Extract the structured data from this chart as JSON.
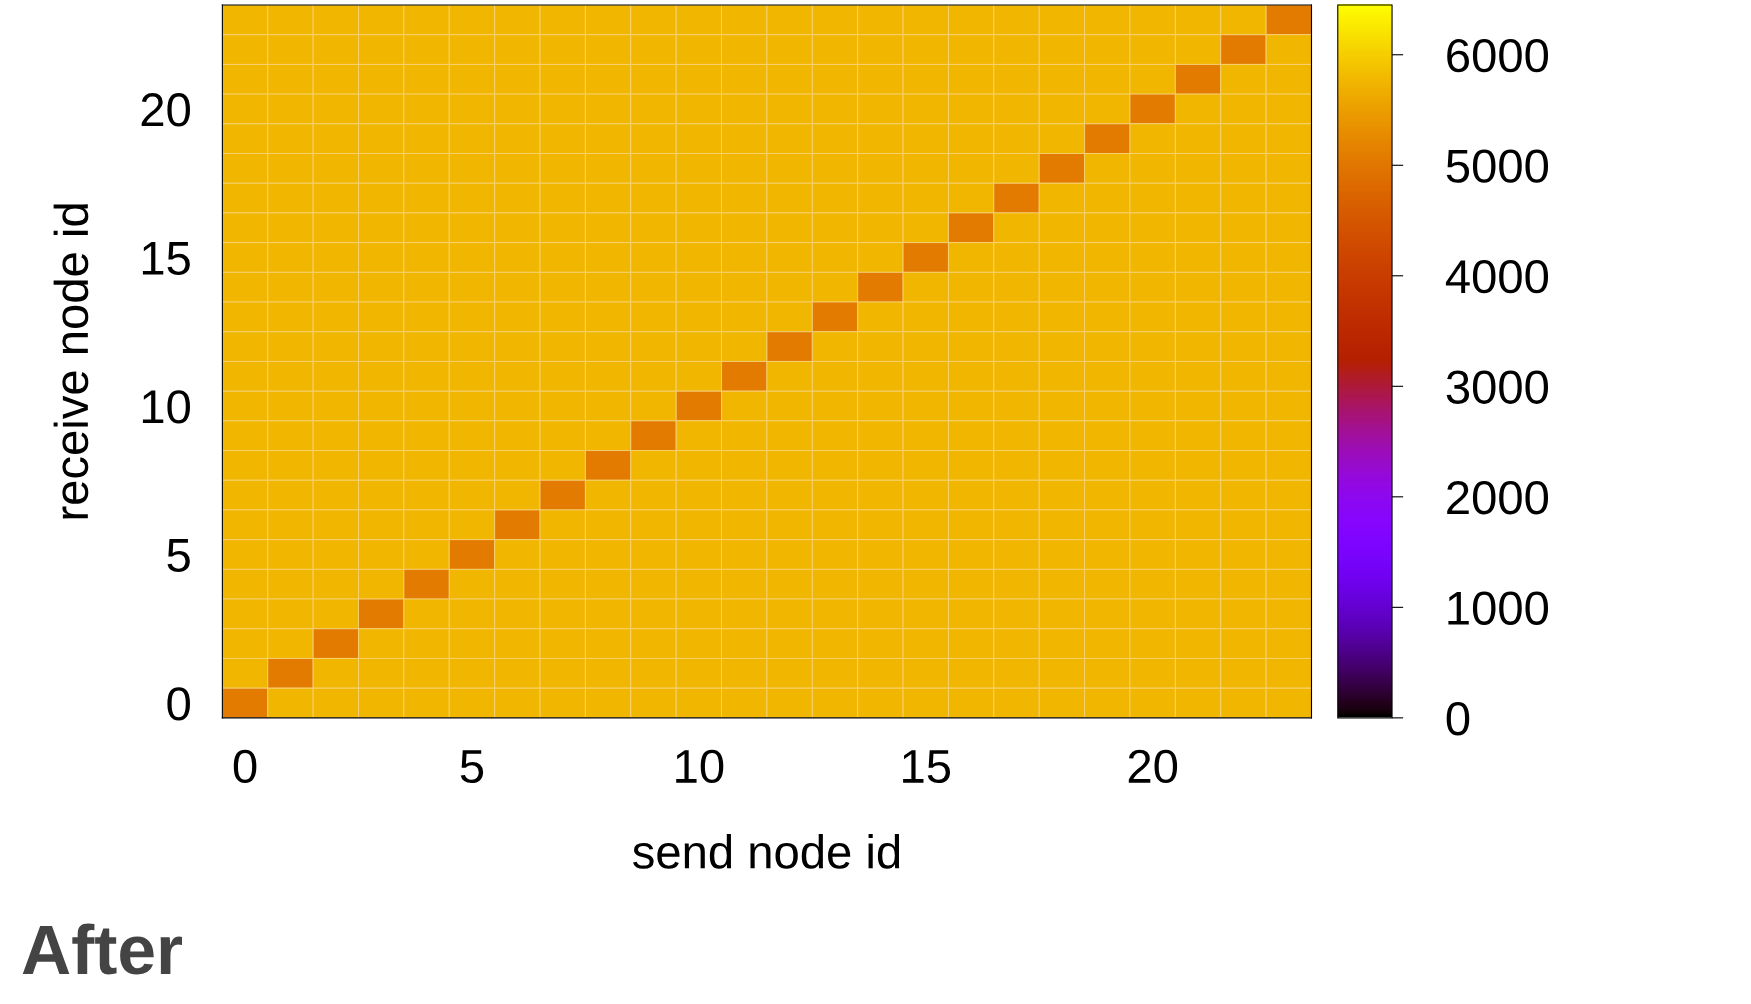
{
  "chart_data": {
    "type": "heatmap",
    "xlabel": "send node id",
    "ylabel": "receive node id",
    "categories": [
      "0",
      null,
      null,
      null,
      null,
      "5",
      null,
      null,
      null,
      null,
      "10",
      null,
      null,
      null,
      null,
      "15",
      null,
      null,
      null,
      null,
      "20",
      null,
      null,
      null
    ],
    "y_categories": [
      null,
      null,
      null,
      "20",
      null,
      null,
      null,
      null,
      "15",
      null,
      null,
      null,
      null,
      "10",
      null,
      null,
      null,
      null,
      "5",
      null,
      null,
      null,
      null,
      "0"
    ],
    "cells": [
      [
        5750,
        5750,
        5750,
        5750,
        5750,
        5750,
        5750,
        5750,
        5750,
        5750,
        5750,
        5750,
        5750,
        5750,
        5750,
        5750,
        5750,
        5750,
        5750,
        5750,
        5750,
        5750,
        5750,
        5050
      ],
      [
        5750,
        5750,
        5750,
        5750,
        5750,
        5750,
        5750,
        5750,
        5750,
        5750,
        5750,
        5750,
        5750,
        5750,
        5750,
        5750,
        5750,
        5750,
        5750,
        5750,
        5750,
        5750,
        5050,
        5750
      ],
      [
        5750,
        5750,
        5750,
        5750,
        5750,
        5750,
        5750,
        5750,
        5750,
        5750,
        5750,
        5750,
        5750,
        5750,
        5750,
        5750,
        5750,
        5750,
        5750,
        5750,
        5750,
        5050,
        5750,
        5750
      ],
      [
        5750,
        5750,
        5750,
        5750,
        5750,
        5750,
        5750,
        5750,
        5750,
        5750,
        5750,
        5750,
        5750,
        5750,
        5750,
        5750,
        5750,
        5750,
        5750,
        5750,
        5050,
        5750,
        5750,
        5750
      ],
      [
        5750,
        5750,
        5750,
        5750,
        5750,
        5750,
        5750,
        5750,
        5750,
        5750,
        5750,
        5750,
        5750,
        5750,
        5750,
        5750,
        5750,
        5750,
        5750,
        5050,
        5750,
        5750,
        5750,
        5750
      ],
      [
        5750,
        5750,
        5750,
        5750,
        5750,
        5750,
        5750,
        5750,
        5750,
        5750,
        5750,
        5750,
        5750,
        5750,
        5750,
        5750,
        5750,
        5750,
        5050,
        5750,
        5750,
        5750,
        5750,
        5750
      ],
      [
        5750,
        5750,
        5750,
        5750,
        5750,
        5750,
        5750,
        5750,
        5750,
        5750,
        5750,
        5750,
        5750,
        5750,
        5750,
        5750,
        5750,
        5050,
        5750,
        5750,
        5750,
        5750,
        5750,
        5750
      ],
      [
        5750,
        5750,
        5750,
        5750,
        5750,
        5750,
        5750,
        5750,
        5750,
        5750,
        5750,
        5750,
        5750,
        5750,
        5750,
        5750,
        5050,
        5750,
        5750,
        5750,
        5750,
        5750,
        5750,
        5750
      ],
      [
        5750,
        5750,
        5750,
        5750,
        5750,
        5750,
        5750,
        5750,
        5750,
        5750,
        5750,
        5750,
        5750,
        5750,
        5750,
        5050,
        5750,
        5750,
        5750,
        5750,
        5750,
        5750,
        5750,
        5750
      ],
      [
        5750,
        5750,
        5750,
        5750,
        5750,
        5750,
        5750,
        5750,
        5750,
        5750,
        5750,
        5750,
        5750,
        5750,
        5050,
        5750,
        5750,
        5750,
        5750,
        5750,
        5750,
        5750,
        5750,
        5750
      ],
      [
        5750,
        5750,
        5750,
        5750,
        5750,
        5750,
        5750,
        5750,
        5750,
        5750,
        5750,
        5750,
        5750,
        5050,
        5750,
        5750,
        5750,
        5750,
        5750,
        5750,
        5750,
        5750,
        5750,
        5750
      ],
      [
        5750,
        5750,
        5750,
        5750,
        5750,
        5750,
        5750,
        5750,
        5750,
        5750,
        5750,
        5750,
        5050,
        5750,
        5750,
        5750,
        5750,
        5750,
        5750,
        5750,
        5750,
        5750,
        5750,
        5750
      ],
      [
        5750,
        5750,
        5750,
        5750,
        5750,
        5750,
        5750,
        5750,
        5750,
        5750,
        5750,
        5050,
        5750,
        5750,
        5750,
        5750,
        5750,
        5750,
        5750,
        5750,
        5750,
        5750,
        5750,
        5750
      ],
      [
        5750,
        5750,
        5750,
        5750,
        5750,
        5750,
        5750,
        5750,
        5750,
        5750,
        5050,
        5750,
        5750,
        5750,
        5750,
        5750,
        5750,
        5750,
        5750,
        5750,
        5750,
        5750,
        5750,
        5750
      ],
      [
        5750,
        5750,
        5750,
        5750,
        5750,
        5750,
        5750,
        5750,
        5750,
        5050,
        5750,
        5750,
        5750,
        5750,
        5750,
        5750,
        5750,
        5750,
        5750,
        5750,
        5750,
        5750,
        5750,
        5750
      ],
      [
        5750,
        5750,
        5750,
        5750,
        5750,
        5750,
        5750,
        5750,
        5050,
        5750,
        5750,
        5750,
        5750,
        5750,
        5750,
        5750,
        5750,
        5750,
        5750,
        5750,
        5750,
        5750,
        5750,
        5750
      ],
      [
        5750,
        5750,
        5750,
        5750,
        5750,
        5750,
        5750,
        5050,
        5750,
        5750,
        5750,
        5750,
        5750,
        5750,
        5750,
        5750,
        5750,
        5750,
        5750,
        5750,
        5750,
        5750,
        5750,
        5750
      ],
      [
        5750,
        5750,
        5750,
        5750,
        5750,
        5750,
        5050,
        5750,
        5750,
        5750,
        5750,
        5750,
        5750,
        5750,
        5750,
        5750,
        5750,
        5750,
        5750,
        5750,
        5750,
        5750,
        5750,
        5750
      ],
      [
        5750,
        5750,
        5750,
        5750,
        5750,
        5050,
        5750,
        5750,
        5750,
        5750,
        5750,
        5750,
        5750,
        5750,
        5750,
        5750,
        5750,
        5750,
        5750,
        5750,
        5750,
        5750,
        5750,
        5750
      ],
      [
        5750,
        5750,
        5750,
        5750,
        5050,
        5750,
        5750,
        5750,
        5750,
        5750,
        5750,
        5750,
        5750,
        5750,
        5750,
        5750,
        5750,
        5750,
        5750,
        5750,
        5750,
        5750,
        5750,
        5750
      ],
      [
        5750,
        5750,
        5750,
        5050,
        5750,
        5750,
        5750,
        5750,
        5750,
        5750,
        5750,
        5750,
        5750,
        5750,
        5750,
        5750,
        5750,
        5750,
        5750,
        5750,
        5750,
        5750,
        5750,
        5750
      ],
      [
        5750,
        5750,
        5050,
        5750,
        5750,
        5750,
        5750,
        5750,
        5750,
        5750,
        5750,
        5750,
        5750,
        5750,
        5750,
        5750,
        5750,
        5750,
        5750,
        5750,
        5750,
        5750,
        5750,
        5750
      ],
      [
        5750,
        5050,
        5750,
        5750,
        5750,
        5750,
        5750,
        5750,
        5750,
        5750,
        5750,
        5750,
        5750,
        5750,
        5750,
        5750,
        5750,
        5750,
        5750,
        5750,
        5750,
        5750,
        5750,
        5750
      ],
      [
        5050,
        5750,
        5750,
        5750,
        5750,
        5750,
        5750,
        5750,
        5750,
        5750,
        5750,
        5750,
        5750,
        5750,
        5750,
        5750,
        5750,
        5750,
        5750,
        5750,
        5750,
        5750,
        5750,
        5750
      ]
    ],
    "clim": [
      0,
      6450
    ],
    "cticks": [
      0,
      1000,
      2000,
      3000,
      4000,
      5000,
      6000
    ],
    "annotations": [
      "After"
    ]
  }
}
